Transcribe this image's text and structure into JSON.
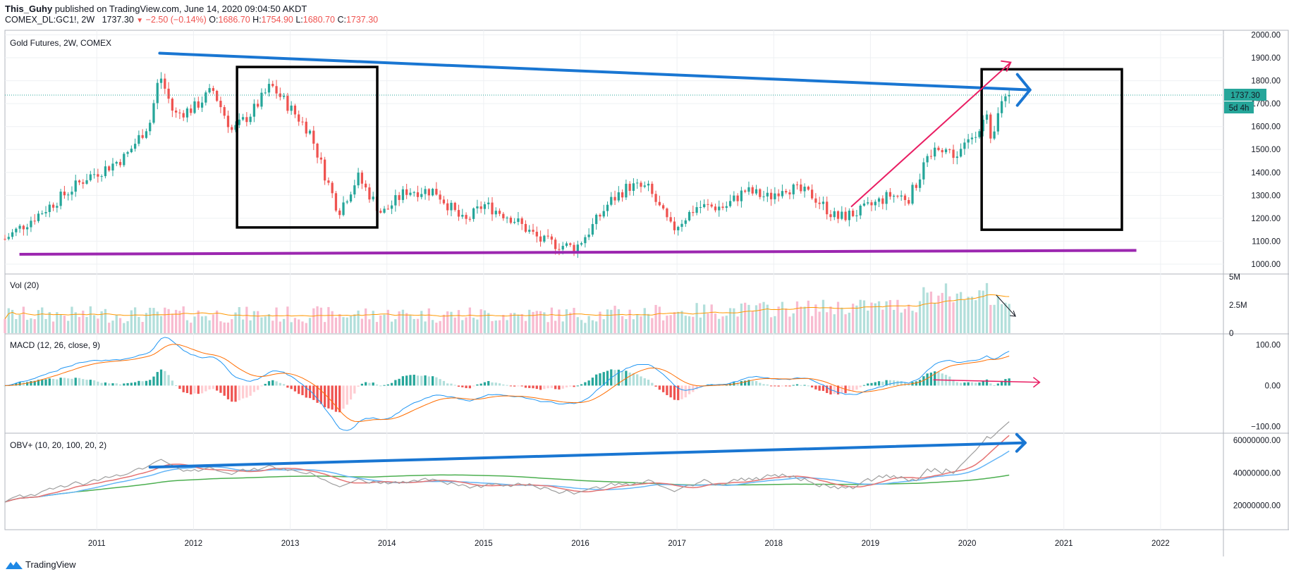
{
  "header": {
    "author": "This_Guhy",
    "published": "published on TradingView.com, June 14, 2020 09:04:50 AKDT",
    "symbol": "COMEX_DL:GC1!, 2W",
    "change": "−2.50 (−0.14%)",
    "open_label": "O:",
    "open": "1686.70",
    "high_label": "H:",
    "high": "1754.90",
    "low_label": "L:",
    "low": "1680.70",
    "close_label": "C:",
    "close": "1737.30"
  },
  "branding": {
    "name": "TradingView"
  },
  "colors": {
    "up": "#26a69a",
    "down": "#ef5350",
    "vol_up": "#b2dfdb",
    "vol_down": "#f8bbd0",
    "trend_blue": "#1976d2",
    "support_purple": "#9c27b0",
    "arrow_pink": "#e91e63",
    "macd": "#2196f3",
    "signal": "#ff6d00",
    "obv": "#9e9e9e",
    "obv_ma_fast": "#e57373",
    "obv_ma_mid": "#64b5f6",
    "obv_ma_slow": "#4caf50"
  },
  "chart_data": [
    {
      "type": "candlestick",
      "title": "Gold Futures, 2W, COMEX",
      "x_ticks": [
        "2011",
        "2012",
        "2013",
        "2014",
        "2015",
        "2016",
        "2017",
        "2018",
        "2019",
        "2020",
        "2021",
        "2022"
      ],
      "x_range": [
        2010.05,
        2022.65
      ],
      "y_ticks": [
        "2000.00",
        "1900.00",
        "1800.00",
        "1700.00",
        "1600.00",
        "1500.00",
        "1400.00",
        "1300.00",
        "1200.00",
        "1100.00",
        "1000.00"
      ],
      "ylim": [
        960,
        2020
      ],
      "last_price": "1737.30",
      "countdown": "5d 4h",
      "anchor_path": [
        [
          2010.05,
          1110
        ],
        [
          2010.5,
          1250
        ],
        [
          2010.9,
          1380
        ],
        [
          2011.1,
          1420
        ],
        [
          2011.3,
          1470
        ],
        [
          2011.55,
          1620
        ],
        [
          2011.65,
          1830
        ],
        [
          2011.8,
          1650
        ],
        [
          2012.0,
          1680
        ],
        [
          2012.2,
          1760
        ],
        [
          2012.4,
          1580
        ],
        [
          2012.6,
          1660
        ],
        [
          2012.8,
          1780
        ],
        [
          2013.0,
          1680
        ],
        [
          2013.2,
          1580
        ],
        [
          2013.35,
          1400
        ],
        [
          2013.5,
          1230
        ],
        [
          2013.7,
          1380
        ],
        [
          2013.95,
          1220
        ],
        [
          2014.2,
          1320
        ],
        [
          2014.5,
          1320
        ],
        [
          2014.8,
          1180
        ],
        [
          2015.0,
          1260
        ],
        [
          2015.3,
          1200
        ],
        [
          2015.6,
          1100
        ],
        [
          2015.95,
          1070
        ],
        [
          2016.1,
          1150
        ],
        [
          2016.3,
          1270
        ],
        [
          2016.5,
          1340
        ],
        [
          2016.7,
          1330
        ],
        [
          2016.95,
          1150
        ],
        [
          2017.2,
          1250
        ],
        [
          2017.5,
          1250
        ],
        [
          2017.7,
          1320
        ],
        [
          2017.95,
          1290
        ],
        [
          2018.1,
          1340
        ],
        [
          2018.4,
          1300
        ],
        [
          2018.65,
          1200
        ],
        [
          2018.9,
          1230
        ],
        [
          2019.2,
          1300
        ],
        [
          2019.4,
          1290
        ],
        [
          2019.55,
          1420
        ],
        [
          2019.7,
          1520
        ],
        [
          2019.9,
          1470
        ],
        [
          2020.05,
          1560
        ],
        [
          2020.2,
          1640
        ],
        [
          2020.25,
          1500
        ],
        [
          2020.35,
          1720
        ],
        [
          2020.45,
          1737.3
        ]
      ],
      "annotations": {
        "resistance_line": [
          [
            2011.65,
            1920
          ],
          [
            2020.65,
            1760
          ]
        ],
        "support_line": [
          [
            2010.2,
            1043
          ],
          [
            2021.75,
            1060
          ]
        ],
        "box_1": {
          "x": [
            2012.45,
            2013.9
          ],
          "y": [
            1160,
            1860
          ]
        },
        "box_2": {
          "x": [
            2020.15,
            2021.6
          ],
          "y": [
            1150,
            1850
          ]
        },
        "rising_arrow": [
          [
            2018.8,
            1250
          ],
          [
            2020.45,
            1880
          ]
        ]
      }
    },
    {
      "type": "bar",
      "title": "Vol (20)",
      "y_ticks": [
        "5M",
        "2.5M",
        "0"
      ],
      "ylim": [
        0,
        5.2
      ]
    },
    {
      "type": "line",
      "title": "MACD (12, 26, close, 9)",
      "y_ticks": [
        "100.00",
        "0.00",
        "−100.00"
      ],
      "ylim": [
        -115,
        125
      ]
    },
    {
      "type": "line",
      "title": "OBV+ (10, 20, 100, 20, 2)",
      "y_ticks": [
        "60000000.00",
        "40000000.00",
        "20000000.00"
      ],
      "ylim": [
        5000000,
        64000000
      ]
    }
  ]
}
